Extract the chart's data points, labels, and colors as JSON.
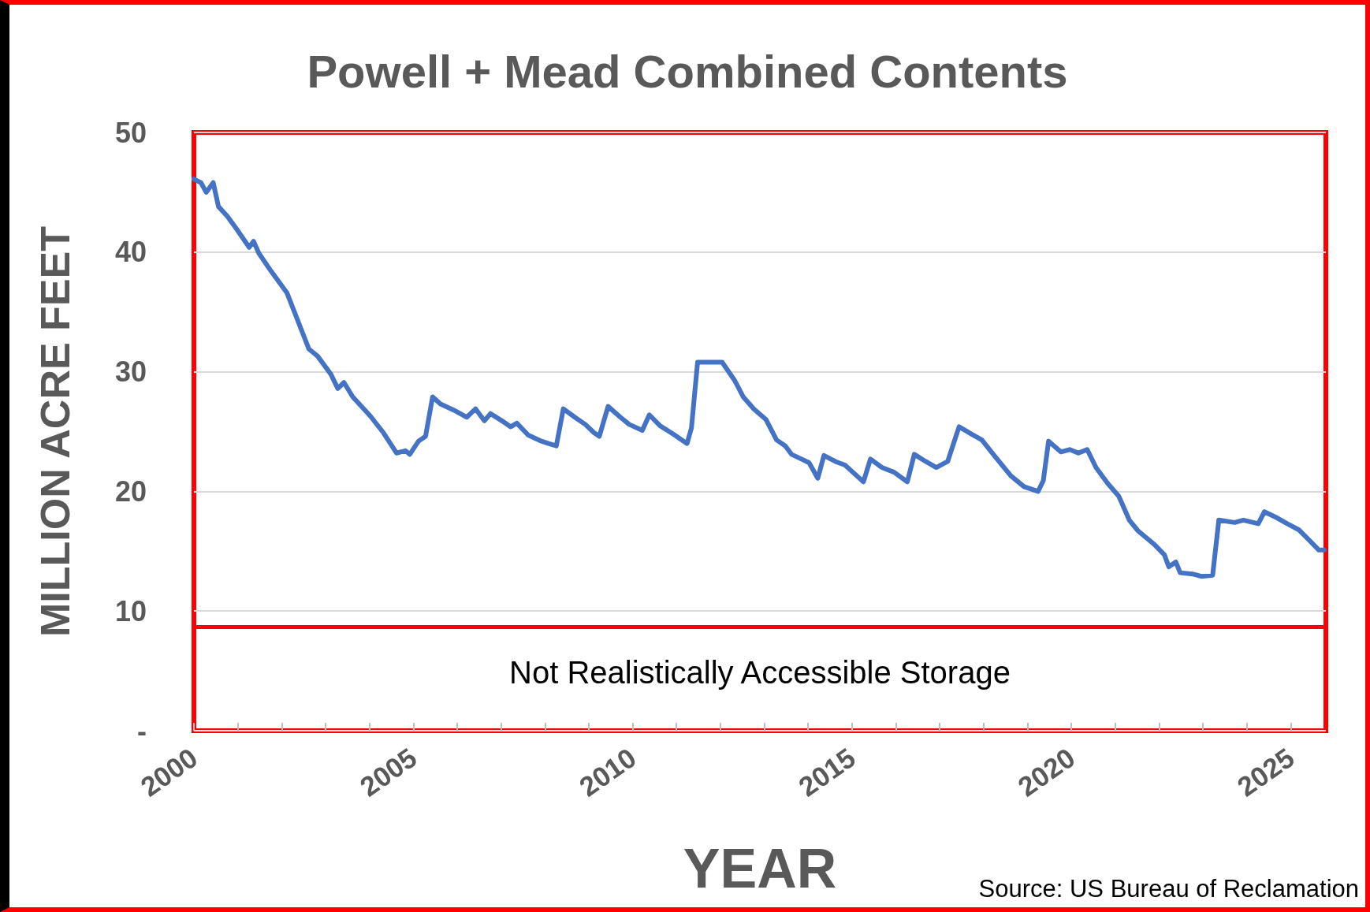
{
  "chart_data": {
    "type": "line",
    "title": "Powell + Mead Combined Contents",
    "xlabel": "YEAR",
    "ylabel": "MILLION ACRE FEET",
    "annotations": [
      "Source: US Bureau of Reclamation"
    ],
    "xlim": [
      2000,
      2025.8
    ],
    "xticks": [
      2000,
      {
        "value": 2001,
        "label": null
      },
      {
        "value": 2002,
        "label": null
      },
      {
        "value": 2003,
        "label": null
      },
      {
        "value": 2004,
        "label": null
      },
      2005,
      {
        "value": 2006,
        "label": null
      },
      {
        "value": 2007,
        "label": null
      },
      {
        "value": 2008,
        "label": null
      },
      {
        "value": 2009,
        "label": null
      },
      2010,
      {
        "value": 2011,
        "label": null
      },
      {
        "value": 2012,
        "label": null
      },
      {
        "value": 2013,
        "label": null
      },
      {
        "value": 2014,
        "label": null
      },
      2015,
      {
        "value": 2016,
        "label": null
      },
      {
        "value": 2017,
        "label": null
      },
      {
        "value": 2018,
        "label": null
      },
      {
        "value": 2019,
        "label": null
      },
      2020,
      {
        "value": 2021,
        "label": null
      },
      {
        "value": 2022,
        "label": null
      },
      {
        "value": 2023,
        "label": null
      },
      {
        "value": 2024,
        "label": null
      },
      2025
    ],
    "ylim": [
      0,
      50
    ],
    "yticks": [
      {
        "value": 0,
        "label": "-"
      },
      10,
      20,
      30,
      40,
      50
    ],
    "grid": "y",
    "marker": "none",
    "line_style": "solid",
    "ref_lines": [
      {
        "axis": "y",
        "value": 8.7,
        "label": "Not Realistically Accessible Storage",
        "color": "#ff0000"
      }
    ],
    "series": [
      {
        "color": "#4472c4",
        "x": [
          2000.0,
          2000.16,
          2000.28,
          2000.44,
          2000.56,
          2000.76,
          2000.96,
          2001.26,
          2001.36,
          2001.48,
          2001.76,
          2002.12,
          2002.62,
          2002.82,
          2003.12,
          2003.28,
          2003.42,
          2003.62,
          2004.02,
          2004.32,
          2004.62,
          2004.82,
          2004.92,
          2005.12,
          2005.28,
          2005.44,
          2005.62,
          2005.92,
          2006.22,
          2006.42,
          2006.62,
          2006.76,
          2007.02,
          2007.22,
          2007.36,
          2007.62,
          2007.92,
          2008.08,
          2008.26,
          2008.42,
          2008.68,
          2008.92,
          2009.12,
          2009.24,
          2009.44,
          2009.72,
          2009.92,
          2010.22,
          2010.38,
          2010.62,
          2010.92,
          2011.24,
          2011.34,
          2011.48,
          2011.76,
          2012.04,
          2012.32,
          2012.52,
          2012.76,
          2013.04,
          2013.28,
          2013.48,
          2013.62,
          2014.02,
          2014.22,
          2014.36,
          2014.62,
          2014.84,
          2015.02,
          2015.26,
          2015.42,
          2015.68,
          2015.96,
          2016.26,
          2016.42,
          2016.68,
          2016.92,
          2017.18,
          2017.44,
          2017.72,
          2017.96,
          2018.22,
          2018.62,
          2018.92,
          2019.24,
          2019.36,
          2019.48,
          2019.76,
          2019.96,
          2020.16,
          2020.36,
          2020.56,
          2020.82,
          2021.08,
          2021.32,
          2021.52,
          2021.88,
          2022.12,
          2022.22,
          2022.38,
          2022.48,
          2022.76,
          2022.96,
          2023.22,
          2023.36,
          2023.72,
          2023.92,
          2024.26,
          2024.4,
          2024.68,
          2024.92,
          2025.18,
          2025.4,
          2025.64,
          2025.76
        ],
        "values": [
          46.1,
          45.8,
          45.0,
          45.8,
          43.8,
          43.0,
          42.0,
          40.4,
          40.9,
          39.9,
          38.4,
          36.6,
          31.9,
          31.3,
          29.8,
          28.6,
          29.1,
          27.9,
          26.3,
          24.9,
          23.2,
          23.4,
          23.1,
          24.2,
          24.6,
          27.9,
          27.3,
          26.8,
          26.2,
          26.9,
          25.9,
          26.5,
          25.9,
          25.4,
          25.7,
          24.7,
          24.2,
          24.0,
          23.8,
          26.9,
          26.2,
          25.6,
          24.9,
          24.6,
          27.1,
          26.2,
          25.6,
          25.1,
          26.4,
          25.5,
          24.8,
          24.0,
          25.3,
          30.8,
          30.8,
          30.8,
          29.3,
          27.9,
          26.9,
          26.0,
          24.3,
          23.8,
          23.1,
          22.4,
          21.1,
          23.0,
          22.5,
          22.2,
          21.6,
          20.8,
          22.7,
          22.0,
          21.6,
          20.8,
          23.1,
          22.5,
          22.0,
          22.5,
          25.4,
          24.8,
          24.3,
          23.1,
          21.3,
          20.4,
          20.0,
          20.9,
          24.2,
          23.3,
          23.5,
          23.2,
          23.5,
          22.0,
          20.7,
          19.6,
          17.6,
          16.7,
          15.6,
          14.7,
          13.7,
          14.1,
          13.2,
          13.1,
          12.9,
          13.0,
          17.6,
          17.4,
          17.6,
          17.3,
          18.3,
          17.8,
          17.3,
          16.8,
          16.0,
          15.1,
          15.1
        ]
      }
    ]
  }
}
